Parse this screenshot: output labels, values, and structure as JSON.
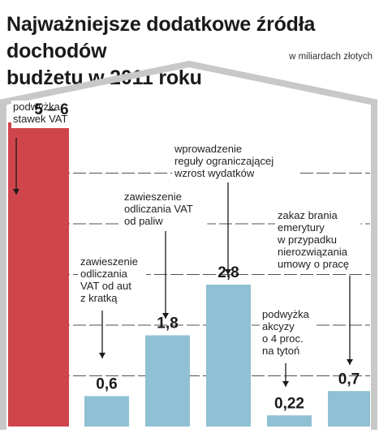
{
  "header": {
    "title_line1": "Najważniejsze dodatkowe źródła dochodów",
    "title_line2": "budżetu w 2011 roku",
    "subtitle": "w miliardach złotych"
  },
  "colors": {
    "highlight_bar": "#d0454c",
    "bar": "#8fc0d3",
    "frame": "#c8c8c8",
    "gridline": "#1a1a1a"
  },
  "chart_data": {
    "type": "bar",
    "title": "Najważniejsze dodatkowe źródła dochodów budżetu w 2011 roku",
    "unit": "w miliardach złotych",
    "ylim": [
      0,
      6.4
    ],
    "grid": true,
    "categories": [
      "podwyżka stawek VAT",
      "zawieszenie odliczania VAT od aut z kratką",
      "zawieszenie odliczania VAT od paliw",
      "wprowadzenie reguły ograniczającej wzrost wydatków",
      "podwyżka akcyzy o 4 proc. na tytoń",
      "zakaz brania emerytury w przypadku nierozwiązania umowy o pracę"
    ],
    "values": [
      6,
      0.6,
      1.8,
      2.8,
      0.22,
      0.7
    ],
    "value_labels": [
      "5 – 6",
      "0,6",
      "1,8",
      "2,8",
      "0,22",
      "0,7"
    ],
    "label_lines": [
      [
        "podwyżka",
        "stawek VAT"
      ],
      [
        "zawieszenie",
        "odliczania",
        "VAT od aut",
        "z kratką"
      ],
      [
        "zawieszenie",
        "odliczania VAT",
        "od paliw"
      ],
      [
        "wprowadzenie",
        "reguły ograniczającej",
        "wzrost wydatków"
      ],
      [
        "podwyżka",
        "akcyzy",
        "o 4 proc.",
        "na tytoń"
      ],
      [
        "zakaz brania",
        "emerytury",
        "w przypadku",
        "nierozwiązania",
        "umowy o pracę"
      ]
    ]
  }
}
